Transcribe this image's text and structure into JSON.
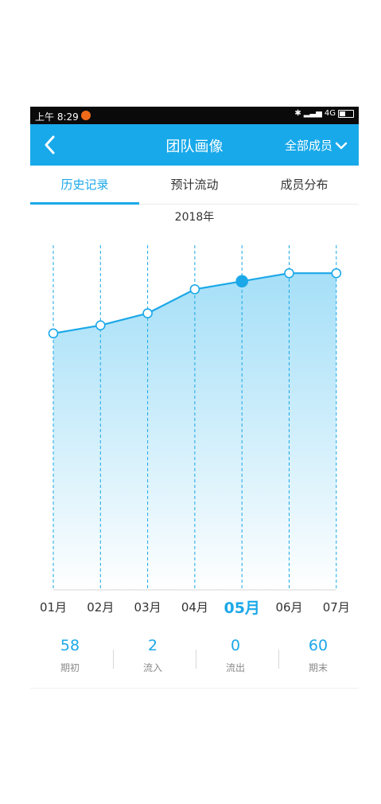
{
  "status_bar": {
    "time": "上午 8:29",
    "network": "4G"
  },
  "header": {
    "title": "团队画像",
    "filter_label": "全部成员"
  },
  "tabs": [
    {
      "label": "历史记录",
      "active": true
    },
    {
      "label": "预计流动",
      "active": false
    },
    {
      "label": "成员分布",
      "active": false
    }
  ],
  "year_label": "2018年",
  "chart_data": {
    "type": "area",
    "x": [
      "01月",
      "02月",
      "03月",
      "04月",
      "05月",
      "06月",
      "07月"
    ],
    "values": [
      58,
      59,
      60.5,
      63.5,
      64.5,
      65.5,
      65.5
    ],
    "selected_index": 4,
    "ylim": [
      26,
      69
    ],
    "accent": "#1ca8e8"
  },
  "summary": [
    {
      "value": "58",
      "label": "期初"
    },
    {
      "value": "2",
      "label": "流入"
    },
    {
      "value": "0",
      "label": "流出"
    },
    {
      "value": "60",
      "label": "期末"
    }
  ]
}
